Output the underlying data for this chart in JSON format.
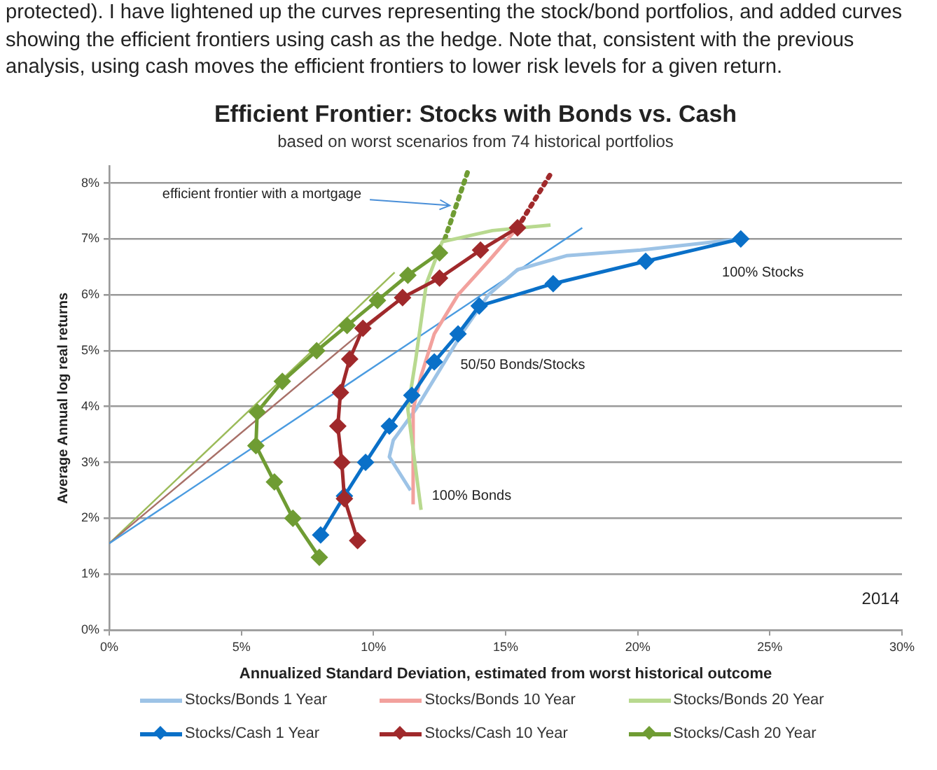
{
  "chart_data": {
    "type": "line",
    "title": "Efficient Frontier: Stocks with Bonds vs. Cash",
    "subtitle": "based on worst scenarios from 74 historical portfolios",
    "xlabel": "Annualized Standard Deviation, estimated from worst historical outcome",
    "ylabel": "Average Annual log real returns",
    "xlim": [
      0,
      30
    ],
    "xticks": [
      {
        "value": 0,
        "label": "0%"
      },
      {
        "value": 5,
        "label": "5%"
      },
      {
        "value": 10,
        "label": "10%"
      },
      {
        "value": 15,
        "label": "15%"
      },
      {
        "value": 20,
        "label": "20%"
      },
      {
        "value": 25,
        "label": "25%"
      },
      {
        "value": 30,
        "label": "30%"
      }
    ],
    "ylim": [
      0,
      8.3
    ],
    "yticks": [
      {
        "value": 0,
        "label": "0%"
      },
      {
        "value": 1,
        "label": "1%"
      },
      {
        "value": 2,
        "label": "2%"
      },
      {
        "value": 3,
        "label": "3%"
      },
      {
        "value": 4,
        "label": "4%"
      },
      {
        "value": 5,
        "label": "5%"
      },
      {
        "value": 6,
        "label": "6%"
      },
      {
        "value": 7,
        "label": "7%"
      },
      {
        "value": 8,
        "label": "8%"
      }
    ],
    "grid": "y",
    "legend": "bottom",
    "series": [
      {
        "name": "Stocks/Bonds 1 Year",
        "color": "#9dc3e6",
        "marker": "none",
        "x": [
          11.4,
          10.6,
          10.75,
          11.6,
          12.5,
          13.4,
          14.35,
          15.45,
          17.3,
          20.1,
          23.9
        ],
        "values": [
          2.5,
          3.1,
          3.4,
          3.95,
          4.65,
          5.35,
          6.0,
          6.45,
          6.7,
          6.8,
          7.0
        ]
      },
      {
        "name": "Stocks/Bonds 10 Year",
        "color": "#f2a19d",
        "marker": "none",
        "x": [
          11.5,
          11.5,
          11.8,
          12.3,
          13.2,
          14.35,
          15.45
        ],
        "values": [
          2.25,
          3.95,
          4.55,
          5.3,
          6.0,
          6.6,
          7.2
        ]
      },
      {
        "name": "Stocks/Bonds 20 Year",
        "color": "#b8d98f",
        "marker": "none",
        "x": [
          11.8,
          11.3,
          11.6,
          12.0,
          12.6,
          14.5,
          16.7
        ],
        "values": [
          2.15,
          3.95,
          4.85,
          6.2,
          6.95,
          7.15,
          7.25
        ]
      },
      {
        "name": "Stocks/Cash 1 Year",
        "color": "#0a70c8",
        "marker": "diamond",
        "x": [
          8.0,
          8.9,
          9.7,
          10.6,
          11.45,
          12.3,
          13.2,
          14.0,
          16.8,
          20.3,
          23.9
        ],
        "values": [
          1.7,
          2.4,
          3.0,
          3.65,
          4.2,
          4.8,
          5.3,
          5.8,
          6.2,
          6.6,
          7.0
        ]
      },
      {
        "name": "Stocks/Cash 10 Year",
        "color": "#a0292b",
        "marker": "diamond",
        "x": [
          9.4,
          8.9,
          8.8,
          8.65,
          8.75,
          9.1,
          9.6,
          11.1,
          12.5,
          14.05,
          15.45
        ],
        "values": [
          1.6,
          2.35,
          3.0,
          3.65,
          4.25,
          4.85,
          5.4,
          5.95,
          6.3,
          6.8,
          7.2
        ]
      },
      {
        "name": "Stocks/Cash 20 Year",
        "color": "#6f9c33",
        "marker": "diamond",
        "x": [
          7.95,
          6.95,
          6.25,
          5.55,
          5.6,
          6.55,
          7.85,
          9.0,
          10.15,
          11.3,
          12.5
        ],
        "values": [
          1.3,
          2.0,
          2.65,
          3.3,
          3.9,
          4.45,
          5.0,
          5.45,
          5.9,
          6.35,
          6.75
        ]
      },
      {
        "color": "#4a9be0",
        "marker": "none",
        "x": [
          0,
          17.9
        ],
        "values": [
          1.55,
          7.2
        ]
      },
      {
        "color": "#a87068",
        "marker": "none",
        "x": [
          0,
          11.1
        ],
        "values": [
          1.55,
          5.95
        ]
      },
      {
        "color": "#9bbb59",
        "marker": "none",
        "x": [
          0,
          10.8
        ],
        "values": [
          1.55,
          6.4
        ]
      },
      {
        "color": "#6f9c33",
        "marker": "none",
        "line_style": "dotted",
        "x": [
          12.7,
          13.6
        ],
        "values": [
          7.0,
          8.25
        ]
      },
      {
        "color": "#a0292b",
        "marker": "none",
        "line_style": "dotted",
        "x": [
          15.45,
          16.75
        ],
        "values": [
          7.2,
          8.2
        ]
      }
    ],
    "annotations": [
      "protected).  I have lightened up the curves representing the stock/bond portfolios, and added curves showing the efficient frontiers using cash as the hedge.  Note that, consistent with the previous analysis, using cash moves the efficient frontiers to lower risk levels for a given return.",
      "2014",
      {
        "text": "efficient frontier with a mortgage",
        "x": 13.1,
        "y": 7.6
      },
      "50/50 Bonds/Stocks",
      "100% Bonds",
      "100% Stocks"
    ]
  }
}
